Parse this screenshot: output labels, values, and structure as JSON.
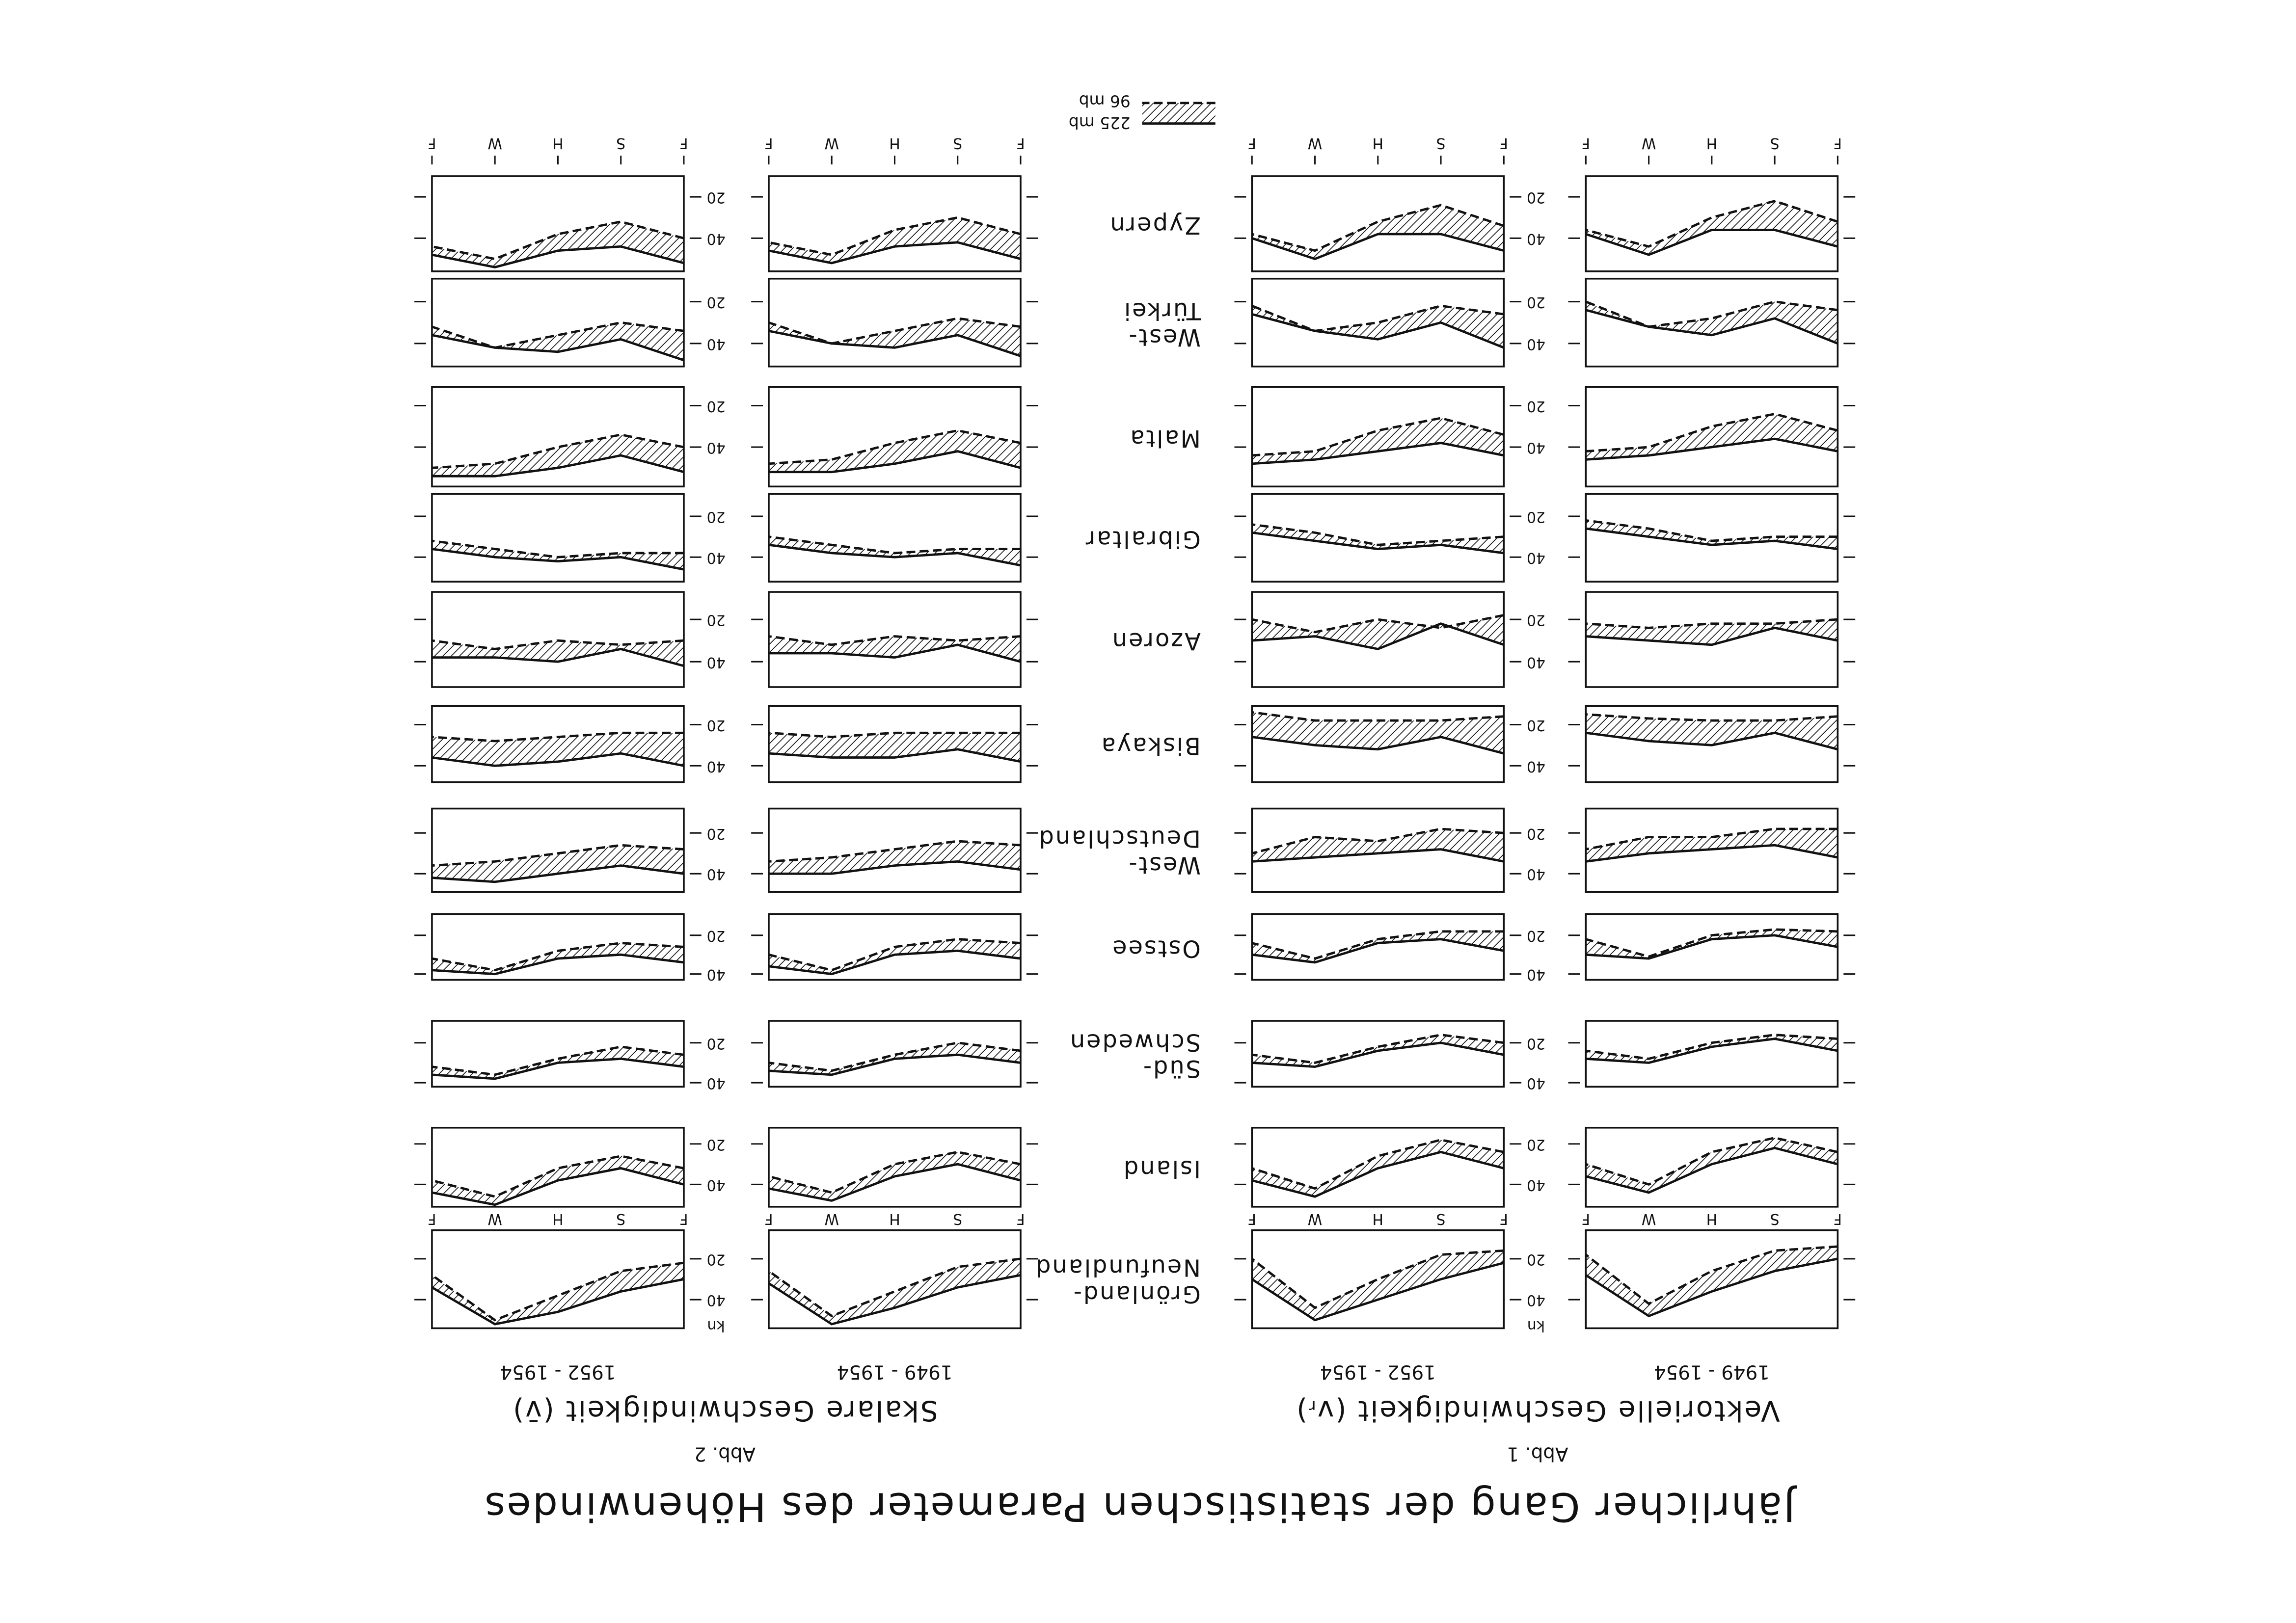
{
  "chart_data": {
    "type": "band",
    "title": "Jährlicher Gang der statistischen Parameter des Höhenwindes",
    "categories": [
      "F",
      "S",
      "H",
      "W",
      "F"
    ],
    "y_unit": "kn",
    "yticks": [
      20,
      40
    ],
    "series": [
      {
        "name": "225 mb",
        "dash": false
      },
      {
        "name": "96 mb",
        "dash": true
      }
    ],
    "stations": [
      {
        "name": [
          "Grönland-",
          "Neufundland"
        ],
        "ylim": [
          6,
          54
        ]
      },
      {
        "name": [
          "Island"
        ],
        "ylim": [
          12,
          51
        ]
      },
      {
        "name": [
          "Süd-",
          "Schweden"
        ],
        "ylim": [
          9,
          42
        ]
      },
      {
        "name": [
          "Ostsee"
        ],
        "ylim": [
          9,
          43
        ]
      },
      {
        "name": [
          "West-",
          "Deutschland"
        ],
        "ylim": [
          8,
          49
        ]
      },
      {
        "name": [
          "Biskaya"
        ],
        "ylim": [
          11,
          48
        ]
      },
      {
        "name": [
          "Azoren"
        ],
        "ylim": [
          7,
          52
        ]
      },
      {
        "name": [
          "Gibraltar"
        ],
        "ylim": [
          9,
          52
        ]
      },
      {
        "name": [
          "Malta"
        ],
        "ylim": [
          11,
          59
        ]
      },
      {
        "name": [
          "West-",
          "Türkei"
        ],
        "ylim": [
          9,
          51
        ]
      },
      {
        "name": [
          "Zypern"
        ],
        "ylim": [
          10,
          56
        ]
      }
    ],
    "figures": [
      {
        "label": "Abb. 1",
        "title": "Vektorielle Geschwindigkeit (vᵣ)",
        "columns": [
          {
            "period": "1949 - 1954",
            "panels": [
              [
                [
                  20,
                  26,
                  36,
                  48,
                  28
                ],
                [
                  14,
                  16,
                  26,
                  42,
                  18
                ]
              ],
              [
                [
                  30,
                  22,
                  30,
                  44,
                  36
                ],
                [
                  24,
                  17,
                  24,
                  40,
                  30
                ]
              ],
              [
                [
                  24,
                  18,
                  22,
                  30,
                  28
                ],
                [
                  18,
                  16,
                  20,
                  28,
                  24
                ]
              ],
              [
                [
                  26,
                  20,
                  22,
                  32,
                  30
                ],
                [
                  18,
                  17,
                  20,
                  31,
                  22
                ]
              ],
              [
                [
                  32,
                  26,
                  28,
                  30,
                  34
                ],
                [
                  18,
                  18,
                  22,
                  22,
                  28
                ]
              ],
              [
                [
                  32,
                  24,
                  30,
                  28,
                  24
                ],
                [
                  16,
                  18,
                  18,
                  17,
                  15
                ]
              ],
              [
                [
                  30,
                  24,
                  32,
                  30,
                  28
                ],
                [
                  20,
                  22,
                  22,
                  24,
                  22
                ]
              ],
              [
                [
                  36,
                  32,
                  34,
                  30,
                  26
                ],
                [
                  30,
                  30,
                  32,
                  26,
                  22
                ]
              ],
              [
                [
                  42,
                  36,
                  40,
                  44,
                  46
                ],
                [
                  32,
                  24,
                  30,
                  40,
                  42
                ]
              ],
              [
                [
                  40,
                  28,
                  36,
                  32,
                  24
                ],
                [
                  24,
                  20,
                  28,
                  32,
                  20
                ]
              ],
              [
                [
                  44,
                  36,
                  36,
                  48,
                  38
                ],
                [
                  32,
                  22,
                  30,
                  44,
                  36
                ]
              ]
            ]
          },
          {
            "period": "1952 - 1954",
            "panels": [
              [
                [
                  22,
                  30,
                  40,
                  50,
                  30
                ],
                [
                  16,
                  18,
                  30,
                  44,
                  20
                ]
              ],
              [
                [
                  32,
                  24,
                  32,
                  46,
                  38
                ],
                [
                  24,
                  18,
                  26,
                  42,
                  32
                ]
              ],
              [
                [
                  26,
                  20,
                  24,
                  32,
                  30
                ],
                [
                  20,
                  16,
                  22,
                  30,
                  26
                ]
              ],
              [
                [
                  28,
                  22,
                  24,
                  34,
                  30
                ],
                [
                  18,
                  18,
                  22,
                  32,
                  24
                ]
              ],
              [
                [
                  34,
                  28,
                  30,
                  32,
                  34
                ],
                [
                  20,
                  18,
                  24,
                  22,
                  30
                ]
              ],
              [
                [
                  34,
                  26,
                  32,
                  30,
                  26
                ],
                [
                  16,
                  18,
                  18,
                  18,
                  14
                ]
              ],
              [
                [
                  32,
                  22,
                  34,
                  28,
                  30
                ],
                [
                  18,
                  24,
                  20,
                  26,
                  20
                ]
              ],
              [
                [
                  38,
                  34,
                  36,
                  32,
                  28
                ],
                [
                  30,
                  32,
                  34,
                  28,
                  24
                ]
              ],
              [
                [
                  44,
                  38,
                  42,
                  46,
                  48
                ],
                [
                  34,
                  26,
                  32,
                  42,
                  44
                ]
              ],
              [
                [
                  42,
                  30,
                  38,
                  34,
                  26
                ],
                [
                  26,
                  22,
                  30,
                  34,
                  22
                ]
              ],
              [
                [
                  46,
                  38,
                  38,
                  50,
                  40
                ],
                [
                  34,
                  24,
                  32,
                  46,
                  38
                ]
              ]
            ]
          }
        ]
      },
      {
        "label": "Abb. 2",
        "title": "Skalare Geschwindigkeit (v̄)",
        "columns": [
          {
            "period": "1949 - 1954",
            "panels": [
              [
                [
                  28,
                  34,
                  44,
                  52,
                  32
                ],
                [
                  20,
                  24,
                  36,
                  48,
                  26
                ]
              ],
              [
                [
                  38,
                  30,
                  36,
                  48,
                  42
                ],
                [
                  30,
                  24,
                  30,
                  44,
                  36
                ]
              ],
              [
                [
                  30,
                  26,
                  28,
                  36,
                  34
                ],
                [
                  24,
                  20,
                  26,
                  34,
                  30
                ]
              ],
              [
                [
                  32,
                  28,
                  30,
                  40,
                  36
                ],
                [
                  24,
                  22,
                  26,
                  38,
                  30
                ]
              ],
              [
                [
                  38,
                  34,
                  36,
                  40,
                  40
                ],
                [
                  26,
                  24,
                  28,
                  32,
                  34
                ]
              ],
              [
                [
                  38,
                  32,
                  36,
                  36,
                  34
                ],
                [
                  24,
                  24,
                  24,
                  26,
                  24
                ]
              ],
              [
                [
                  40,
                  32,
                  38,
                  36,
                  36
                ],
                [
                  28,
                  30,
                  28,
                  32,
                  28
                ]
              ],
              [
                [
                  44,
                  38,
                  40,
                  38,
                  34
                ],
                [
                  36,
                  36,
                  38,
                  34,
                  30
                ]
              ],
              [
                [
                  50,
                  42,
                  48,
                  52,
                  52
                ],
                [
                  38,
                  32,
                  38,
                  46,
                  48
                ]
              ],
              [
                [
                  46,
                  36,
                  42,
                  40,
                  34
                ],
                [
                  32,
                  28,
                  34,
                  40,
                  30
                ]
              ],
              [
                [
                  50,
                  42,
                  44,
                  52,
                  46
                ],
                [
                  38,
                  30,
                  36,
                  48,
                  42
                ]
              ]
            ]
          },
          {
            "period": "1952 - 1954",
            "panels": [
              [
                [
                  30,
                  36,
                  46,
                  52,
                  34
                ],
                [
                  22,
                  26,
                  38,
                  50,
                  28
                ]
              ],
              [
                [
                  40,
                  32,
                  38,
                  50,
                  44
                ],
                [
                  32,
                  26,
                  32,
                  46,
                  38
                ]
              ],
              [
                [
                  32,
                  28,
                  30,
                  38,
                  36
                ],
                [
                  26,
                  22,
                  28,
                  36,
                  32
                ]
              ],
              [
                [
                  34,
                  30,
                  32,
                  40,
                  38
                ],
                [
                  26,
                  24,
                  28,
                  38,
                  32
                ]
              ],
              [
                [
                  40,
                  36,
                  40,
                  44,
                  42
                ],
                [
                  28,
                  26,
                  30,
                  34,
                  36
                ]
              ],
              [
                [
                  40,
                  34,
                  38,
                  40,
                  36
                ],
                [
                  24,
                  24,
                  26,
                  28,
                  26
                ]
              ],
              [
                [
                  42,
                  34,
                  40,
                  38,
                  38
                ],
                [
                  30,
                  32,
                  30,
                  34,
                  30
                ]
              ],
              [
                [
                  46,
                  40,
                  42,
                  40,
                  36
                ],
                [
                  38,
                  38,
                  40,
                  36,
                  32
                ]
              ],
              [
                [
                  52,
                  44,
                  50,
                  54,
                  54
                ],
                [
                  40,
                  34,
                  40,
                  48,
                  50
                ]
              ],
              [
                [
                  48,
                  38,
                  44,
                  42,
                  36
                ],
                [
                  34,
                  30,
                  36,
                  42,
                  32
                ]
              ],
              [
                [
                  52,
                  44,
                  46,
                  54,
                  48
                ],
                [
                  40,
                  32,
                  38,
                  50,
                  44
                ]
              ]
            ]
          }
        ]
      }
    ]
  }
}
